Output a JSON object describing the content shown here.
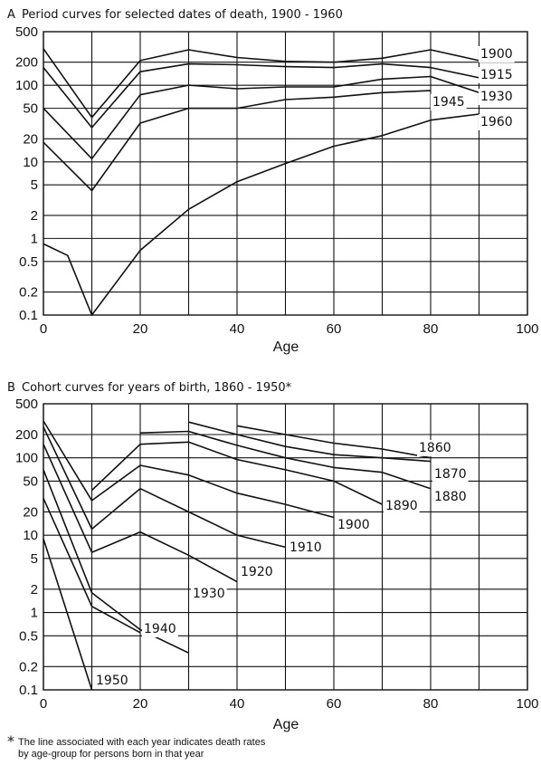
{
  "figure": {
    "footnote_marker": "*",
    "footnote_lines": [
      "The line associated with each year indicates death rates",
      "by age-group for persons born in that year"
    ]
  },
  "chart_data": [
    {
      "type": "line",
      "panel_label": "A",
      "title": "Period curves for selected dates of death, 1900 - 1960",
      "xlabel": "Age",
      "ylabel": "",
      "xlim": [
        0,
        100
      ],
      "ylim": [
        0.1,
        500
      ],
      "y_scale": "log",
      "grid": true,
      "x_ticks": [
        "0",
        "20",
        "40",
        "60",
        "80",
        "100"
      ],
      "y_ticks": [
        "500",
        "200",
        "100",
        "50",
        "20",
        "10",
        "5",
        "2",
        "1",
        "0.5",
        "0.2",
        "0.1"
      ],
      "series": [
        {
          "name": "1900",
          "x": [
            0,
            10,
            20,
            30,
            40,
            50,
            60,
            70,
            80,
            90
          ],
          "values": [
            300,
            38,
            210,
            290,
            230,
            205,
            200,
            225,
            290,
            210
          ]
        },
        {
          "name": "1915",
          "x": [
            0,
            10,
            20,
            30,
            40,
            50,
            60,
            70,
            80,
            90
          ],
          "values": [
            170,
            28,
            150,
            190,
            185,
            175,
            170,
            190,
            170,
            125
          ]
        },
        {
          "name": "1930",
          "x": [
            0,
            10,
            20,
            30,
            40,
            50,
            60,
            70,
            80,
            90
          ],
          "values": [
            50,
            11,
            75,
            100,
            90,
            95,
            95,
            120,
            130,
            80
          ]
        },
        {
          "name": "1945",
          "x": [
            0,
            10,
            20,
            30,
            40,
            50,
            60,
            70,
            80
          ],
          "values": [
            18,
            4.2,
            32,
            50,
            50,
            65,
            70,
            80,
            85
          ]
        },
        {
          "name": "1960",
          "x": [
            0,
            5,
            10,
            20,
            30,
            40,
            50,
            60,
            70,
            80,
            90
          ],
          "values": [
            0.85,
            0.6,
            0.1,
            0.7,
            2.4,
            5.5,
            9.5,
            16,
            22,
            35,
            42
          ]
        }
      ]
    },
    {
      "type": "line",
      "panel_label": "B",
      "title": "Cohort curves for years of birth, 1860 - 1950*",
      "xlabel": "Age",
      "ylabel": "",
      "xlim": [
        0,
        100
      ],
      "ylim": [
        0.1,
        500
      ],
      "y_scale": "log",
      "grid": true,
      "x_ticks": [
        "0",
        "20",
        "40",
        "60",
        "80",
        "100"
      ],
      "y_ticks": [
        "500",
        "200",
        "100",
        "50",
        "20",
        "10",
        "5",
        "2",
        "1",
        "0.5",
        "0.2",
        "0.1"
      ],
      "series": [
        {
          "name": "1860",
          "x": [
            40,
            50,
            60,
            70,
            80
          ],
          "values": [
            260,
            200,
            155,
            130,
            100
          ]
        },
        {
          "name": "1870",
          "x": [
            30,
            40,
            50,
            60,
            70,
            80
          ],
          "values": [
            290,
            200,
            140,
            110,
            100,
            90
          ]
        },
        {
          "name": "1880",
          "x": [
            20,
            30,
            40,
            50,
            60,
            70,
            80
          ],
          "values": [
            210,
            220,
            145,
            100,
            75,
            65,
            40
          ]
        },
        {
          "name": "1890",
          "x": [
            10,
            20,
            30,
            40,
            50,
            60,
            70
          ],
          "values": [
            38,
            150,
            160,
            95,
            70,
            50,
            25
          ]
        },
        {
          "name": "1900",
          "x": [
            0,
            10,
            20,
            30,
            40,
            50,
            60
          ],
          "values": [
            300,
            28,
            80,
            60,
            35,
            25,
            17
          ]
        },
        {
          "name": "1910",
          "x": [
            0,
            10,
            20,
            30,
            40,
            50
          ],
          "values": [
            250,
            12,
            40,
            20,
            10,
            7
          ]
        },
        {
          "name": "1920",
          "x": [
            0,
            10,
            20,
            30,
            40
          ],
          "values": [
            150,
            6,
            11,
            5.5,
            2.5
          ]
        },
        {
          "name": "1930",
          "x": [
            0,
            10,
            20,
            30
          ],
          "values": [
            70,
            1.8,
            0.6,
            0.3
          ]
        },
        {
          "name": "1940",
          "x": [
            0,
            10,
            20
          ],
          "values": [
            30,
            1.2,
            0.55
          ]
        },
        {
          "name": "1950",
          "x": [
            0,
            10
          ],
          "values": [
            9,
            0.1
          ]
        }
      ]
    }
  ]
}
